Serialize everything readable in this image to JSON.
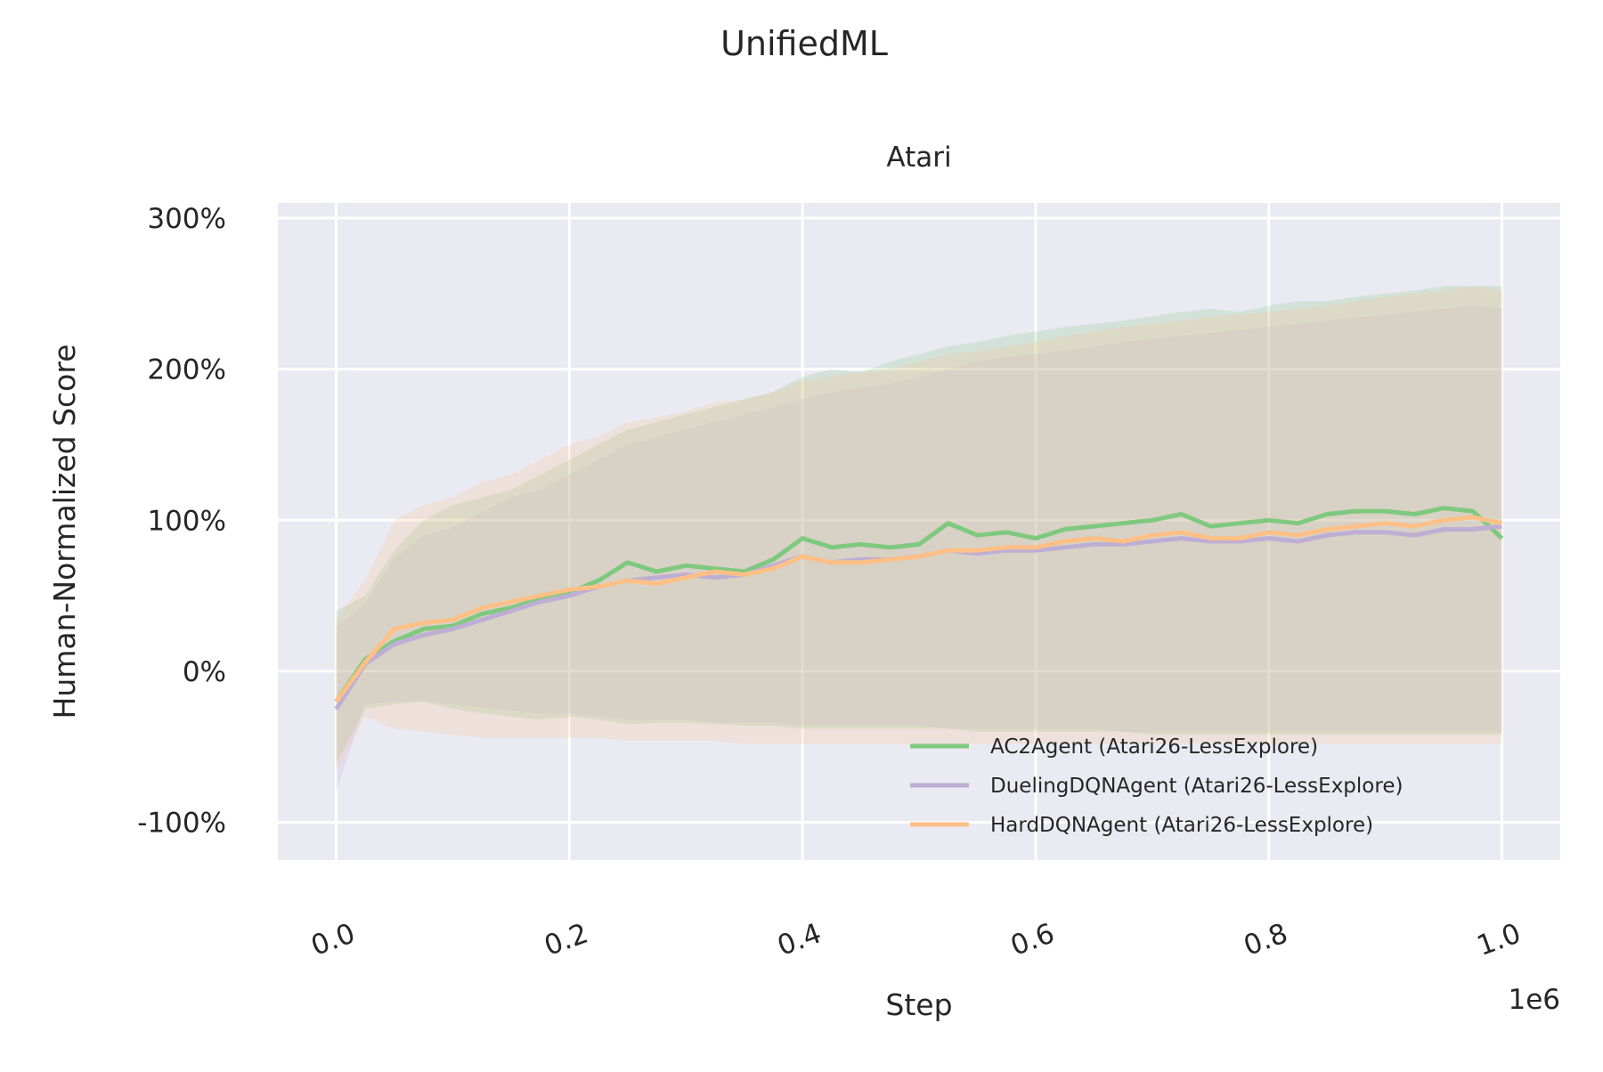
{
  "chart_data": {
    "type": "line",
    "suptitle": "UnifiedML",
    "title": "Atari",
    "xlabel": "Step",
    "ylabel": "Human-Normalized Score",
    "x_offset_text": "1e6",
    "xlim": [
      -0.05,
      1.05
    ],
    "ylim": [
      -125,
      310
    ],
    "x_ticks": [
      0.0,
      0.2,
      0.4,
      0.6,
      0.8,
      1.0
    ],
    "x_tick_labels": [
      "0.0",
      "0.2",
      "0.4",
      "0.6",
      "0.8",
      "1.0"
    ],
    "y_ticks": [
      -100,
      0,
      100,
      200,
      300
    ],
    "y_tick_labels": [
      "-100%",
      "0%",
      "100%",
      "200%",
      "300%"
    ],
    "grid": true,
    "legend_position": "lower-right",
    "x": [
      0.0,
      0.025,
      0.05,
      0.075,
      0.1,
      0.125,
      0.15,
      0.175,
      0.2,
      0.225,
      0.25,
      0.275,
      0.3,
      0.325,
      0.35,
      0.375,
      0.4,
      0.425,
      0.45,
      0.475,
      0.5,
      0.525,
      0.55,
      0.575,
      0.6,
      0.625,
      0.65,
      0.675,
      0.7,
      0.725,
      0.75,
      0.775,
      0.8,
      0.825,
      0.85,
      0.875,
      0.9,
      0.925,
      0.95,
      0.975,
      1.0
    ],
    "series": [
      {
        "name": "AC2Agent (Atari26-LessExplore)",
        "color": "#7fc97f",
        "mean": [
          -20,
          8,
          20,
          28,
          30,
          38,
          42,
          48,
          52,
          60,
          72,
          66,
          70,
          68,
          66,
          74,
          88,
          82,
          84,
          82,
          84,
          98,
          90,
          92,
          88,
          94,
          96,
          98,
          100,
          104,
          96,
          98,
          100,
          98,
          104,
          106,
          106,
          104,
          108,
          106,
          88
        ],
        "upper": [
          40,
          50,
          80,
          100,
          110,
          115,
          120,
          130,
          140,
          150,
          160,
          165,
          170,
          175,
          180,
          185,
          195,
          200,
          198,
          205,
          210,
          215,
          218,
          222,
          225,
          228,
          230,
          232,
          235,
          238,
          240,
          238,
          242,
          245,
          245,
          248,
          250,
          252,
          255,
          255,
          255
        ],
        "lower": [
          -60,
          -25,
          -22,
          -20,
          -25,
          -28,
          -30,
          -32,
          -30,
          -32,
          -35,
          -34,
          -34,
          -35,
          -36,
          -36,
          -38,
          -38,
          -38,
          -38,
          -38,
          -38,
          -40,
          -40,
          -40,
          -40,
          -40,
          -40,
          -42,
          -42,
          -42,
          -42,
          -42,
          -42,
          -42,
          -42,
          -42,
          -42,
          -42,
          -42,
          -42
        ]
      },
      {
        "name": "DuelingDQNAgent (Atari26-LessExplore)",
        "color": "#beaed4",
        "mean": [
          -25,
          5,
          18,
          24,
          28,
          34,
          40,
          46,
          50,
          56,
          60,
          62,
          64,
          62,
          64,
          70,
          76,
          72,
          74,
          74,
          76,
          80,
          78,
          80,
          80,
          82,
          84,
          84,
          86,
          88,
          86,
          86,
          88,
          86,
          90,
          92,
          92,
          90,
          94,
          94,
          96
        ],
        "upper": [
          30,
          45,
          75,
          90,
          95,
          105,
          115,
          120,
          130,
          140,
          150,
          155,
          160,
          165,
          170,
          175,
          180,
          185,
          188,
          190,
          195,
          200,
          205,
          208,
          210,
          212,
          215,
          218,
          220,
          222,
          224,
          226,
          228,
          230,
          232,
          234,
          236,
          238,
          240,
          242,
          240
        ],
        "lower": [
          -80,
          -22,
          -20,
          -20,
          -22,
          -24,
          -26,
          -28,
          -28,
          -30,
          -32,
          -32,
          -32,
          -34,
          -34,
          -34,
          -36,
          -36,
          -36,
          -36,
          -36,
          -38,
          -38,
          -38,
          -38,
          -38,
          -38,
          -40,
          -40,
          -40,
          -40,
          -40,
          -40,
          -40,
          -40,
          -40,
          -40,
          -40,
          -40,
          -40,
          -40
        ]
      },
      {
        "name": "HardDQNAgent (Atari26-LessExplore)",
        "color": "#fdc086",
        "mean": [
          -20,
          6,
          28,
          32,
          34,
          42,
          46,
          50,
          54,
          56,
          60,
          58,
          62,
          66,
          64,
          68,
          76,
          72,
          72,
          74,
          76,
          80,
          80,
          82,
          82,
          86,
          88,
          86,
          90,
          92,
          88,
          88,
          92,
          90,
          94,
          96,
          98,
          96,
          100,
          102,
          98
        ],
        "upper": [
          35,
          60,
          100,
          110,
          115,
          125,
          130,
          140,
          150,
          155,
          165,
          168,
          172,
          178,
          180,
          185,
          192,
          195,
          198,
          200,
          205,
          210,
          212,
          215,
          218,
          222,
          225,
          228,
          230,
          232,
          235,
          236,
          238,
          240,
          242,
          245,
          248,
          250,
          252,
          255,
          252
        ],
        "lower": [
          -65,
          -30,
          -38,
          -40,
          -42,
          -44,
          -44,
          -44,
          -44,
          -44,
          -46,
          -46,
          -46,
          -46,
          -48,
          -48,
          -48,
          -48,
          -48,
          -48,
          -48,
          -48,
          -48,
          -48,
          -48,
          -48,
          -48,
          -48,
          -48,
          -48,
          -48,
          -48,
          -48,
          -48,
          -48,
          -48,
          -48,
          -48,
          -48,
          -48,
          -48
        ]
      }
    ]
  }
}
